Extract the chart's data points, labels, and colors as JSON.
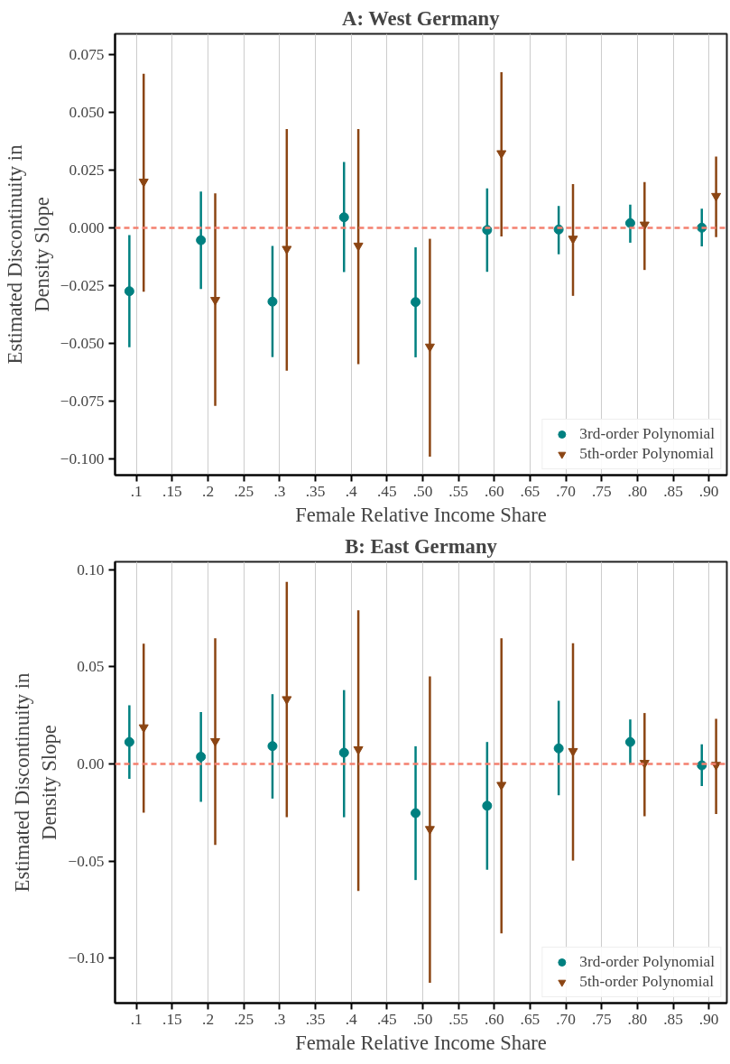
{
  "chart_data": [
    {
      "type": "scatter",
      "title": "A: West Germany",
      "xlabel": "Female Relative Income Share",
      "ylabel": "Estimated Discontinuity in\nDensity Slope",
      "xlim": [
        0.07,
        0.925
      ],
      "xticks": [
        {
          "value": 0.1,
          "label": ".1"
        },
        {
          "value": 0.15,
          "label": ".15"
        },
        {
          "value": 0.2,
          "label": ".2"
        },
        {
          "value": 0.25,
          "label": ".25"
        },
        {
          "value": 0.3,
          "label": ".3"
        },
        {
          "value": 0.35,
          "label": ".35"
        },
        {
          "value": 0.4,
          "label": ".4"
        },
        {
          "value": 0.45,
          "label": ".45"
        },
        {
          "value": 0.5,
          "label": ".50"
        },
        {
          "value": 0.55,
          "label": ".55"
        },
        {
          "value": 0.6,
          "label": ".60"
        },
        {
          "value": 0.65,
          "label": ".65"
        },
        {
          "value": 0.7,
          "label": ".70"
        },
        {
          "value": 0.75,
          "label": ".75"
        },
        {
          "value": 0.8,
          "label": ".80"
        },
        {
          "value": 0.85,
          "label": ".85"
        },
        {
          "value": 0.9,
          "label": ".90"
        }
      ],
      "ylim": [
        -0.107,
        0.084
      ],
      "yticks": [
        {
          "value": 0.075,
          "label": "0.075"
        },
        {
          "value": 0.05,
          "label": "0.050"
        },
        {
          "value": 0.025,
          "label": "0.025"
        },
        {
          "value": 0,
          "label": "0.000"
        },
        {
          "value": -0.025,
          "label": "−0.025"
        },
        {
          "value": -0.05,
          "label": "−0.050"
        },
        {
          "value": -0.075,
          "label": "−0.075"
        },
        {
          "value": -0.1,
          "label": "−0.100"
        }
      ],
      "grid": "x",
      "legend": "bottom right",
      "ref_lines": [
        {
          "axis": "y",
          "value": 0,
          "color": "#f4806f",
          "line_style": "dashed"
        }
      ],
      "series": [
        {
          "name": "3rd-order Polynomial",
          "color": "#008080",
          "marker": "circle",
          "x": [
            0.09,
            0.19,
            0.29,
            0.39,
            0.49,
            0.59,
            0.69,
            0.79,
            0.89
          ],
          "values": [
            -0.0274,
            -0.0053,
            -0.0319,
            0.0046,
            -0.0321,
            -0.0009,
            -0.0007,
            0.0021,
            0.0001
          ],
          "errors": [
            [
              -0.0516,
              -0.0031
            ],
            [
              -0.0264,
              0.0157
            ],
            [
              -0.0559,
              -0.0078
            ],
            [
              -0.0191,
              0.0285
            ],
            [
              -0.056,
              -0.0084
            ],
            [
              -0.019,
              0.0171
            ],
            [
              -0.0114,
              0.0095
            ],
            [
              -0.0064,
              0.0101
            ],
            [
              -0.008,
              0.0083
            ]
          ]
        },
        {
          "name": "5th-order Polynomial",
          "color": "#8b4513",
          "marker": "triangle",
          "x": [
            0.11,
            0.21,
            0.31,
            0.41,
            0.51,
            0.61,
            0.71,
            0.81,
            0.91
          ],
          "values": [
            0.02,
            -0.0312,
            -0.0091,
            -0.0077,
            -0.0514,
            0.0323,
            -0.0047,
            0.0014,
            0.0138
          ],
          "errors": [
            [
              -0.0276,
              0.0667
            ],
            [
              -0.077,
              0.015
            ],
            [
              -0.0618,
              0.0428
            ],
            [
              -0.059,
              0.0428
            ],
            [
              -0.099,
              -0.0047
            ],
            [
              -0.0037,
              0.0674
            ],
            [
              -0.0294,
              0.019
            ],
            [
              -0.0182,
              0.0198
            ],
            [
              -0.004,
              0.0309
            ]
          ]
        }
      ]
    },
    {
      "type": "scatter",
      "title": "B: East Germany",
      "xlabel": "Female Relative Income Share",
      "ylabel": "Estimated Discontinuity in\nDensity Slope",
      "xlim": [
        0.07,
        0.925
      ],
      "xticks": [
        {
          "value": 0.1,
          "label": ".1"
        },
        {
          "value": 0.15,
          "label": ".15"
        },
        {
          "value": 0.2,
          "label": ".2"
        },
        {
          "value": 0.25,
          "label": ".25"
        },
        {
          "value": 0.3,
          "label": ".3"
        },
        {
          "value": 0.35,
          "label": ".35"
        },
        {
          "value": 0.4,
          "label": ".4"
        },
        {
          "value": 0.45,
          "label": ".45"
        },
        {
          "value": 0.5,
          "label": ".50"
        },
        {
          "value": 0.55,
          "label": ".55"
        },
        {
          "value": 0.6,
          "label": ".60"
        },
        {
          "value": 0.65,
          "label": ".65"
        },
        {
          "value": 0.7,
          "label": ".70"
        },
        {
          "value": 0.75,
          "label": ".75"
        },
        {
          "value": 0.8,
          "label": ".80"
        },
        {
          "value": 0.85,
          "label": ".85"
        },
        {
          "value": 0.9,
          "label": ".90"
        }
      ],
      "ylim": [
        -0.123,
        0.104
      ],
      "yticks": [
        {
          "value": 0.1,
          "label": "0.10"
        },
        {
          "value": 0.05,
          "label": "0.05"
        },
        {
          "value": 0,
          "label": "0.00"
        },
        {
          "value": -0.05,
          "label": "−0.05"
        },
        {
          "value": -0.1,
          "label": "−0.10"
        }
      ],
      "grid": "x",
      "legend": "bottom right",
      "ref_lines": [
        {
          "axis": "y",
          "value": 0,
          "color": "#f4806f",
          "line_style": "dashed"
        }
      ],
      "series": [
        {
          "name": "3rd-order Polynomial",
          "color": "#008080",
          "marker": "circle",
          "x": [
            0.09,
            0.19,
            0.29,
            0.39,
            0.49,
            0.59,
            0.69,
            0.79,
            0.89
          ],
          "values": [
            0.0113,
            0.0037,
            0.0092,
            0.0058,
            -0.0253,
            -0.0215,
            0.008,
            0.0113,
            -0.0007
          ],
          "errors": [
            [
              -0.0077,
              0.0302
            ],
            [
              -0.0195,
              0.0267
            ],
            [
              -0.0178,
              0.0359
            ],
            [
              -0.0274,
              0.038
            ],
            [
              -0.0597,
              0.0091
            ],
            [
              -0.0544,
              0.0113
            ],
            [
              -0.0161,
              0.0325
            ],
            [
              -0.0003,
              0.0229
            ],
            [
              -0.0113,
              0.0101
            ]
          ]
        },
        {
          "name": "5th-order Polynomial",
          "color": "#8b4513",
          "marker": "triangle",
          "x": [
            0.11,
            0.21,
            0.31,
            0.41,
            0.51,
            0.61,
            0.71,
            0.81,
            0.91
          ],
          "values": [
            0.0188,
            0.0117,
            0.0333,
            0.0075,
            -0.0335,
            -0.0108,
            0.0066,
            0.0005,
            -0.0005
          ],
          "errors": [
            [
              -0.0251,
              0.0619
            ],
            [
              -0.0417,
              0.0646
            ],
            [
              -0.0274,
              0.0937
            ],
            [
              -0.0653,
              0.079
            ],
            [
              -0.1126,
              0.045
            ],
            [
              -0.0871,
              0.0647
            ],
            [
              -0.0497,
              0.0621
            ],
            [
              -0.0269,
              0.0262
            ],
            [
              -0.0257,
              0.0232
            ]
          ]
        }
      ]
    }
  ]
}
